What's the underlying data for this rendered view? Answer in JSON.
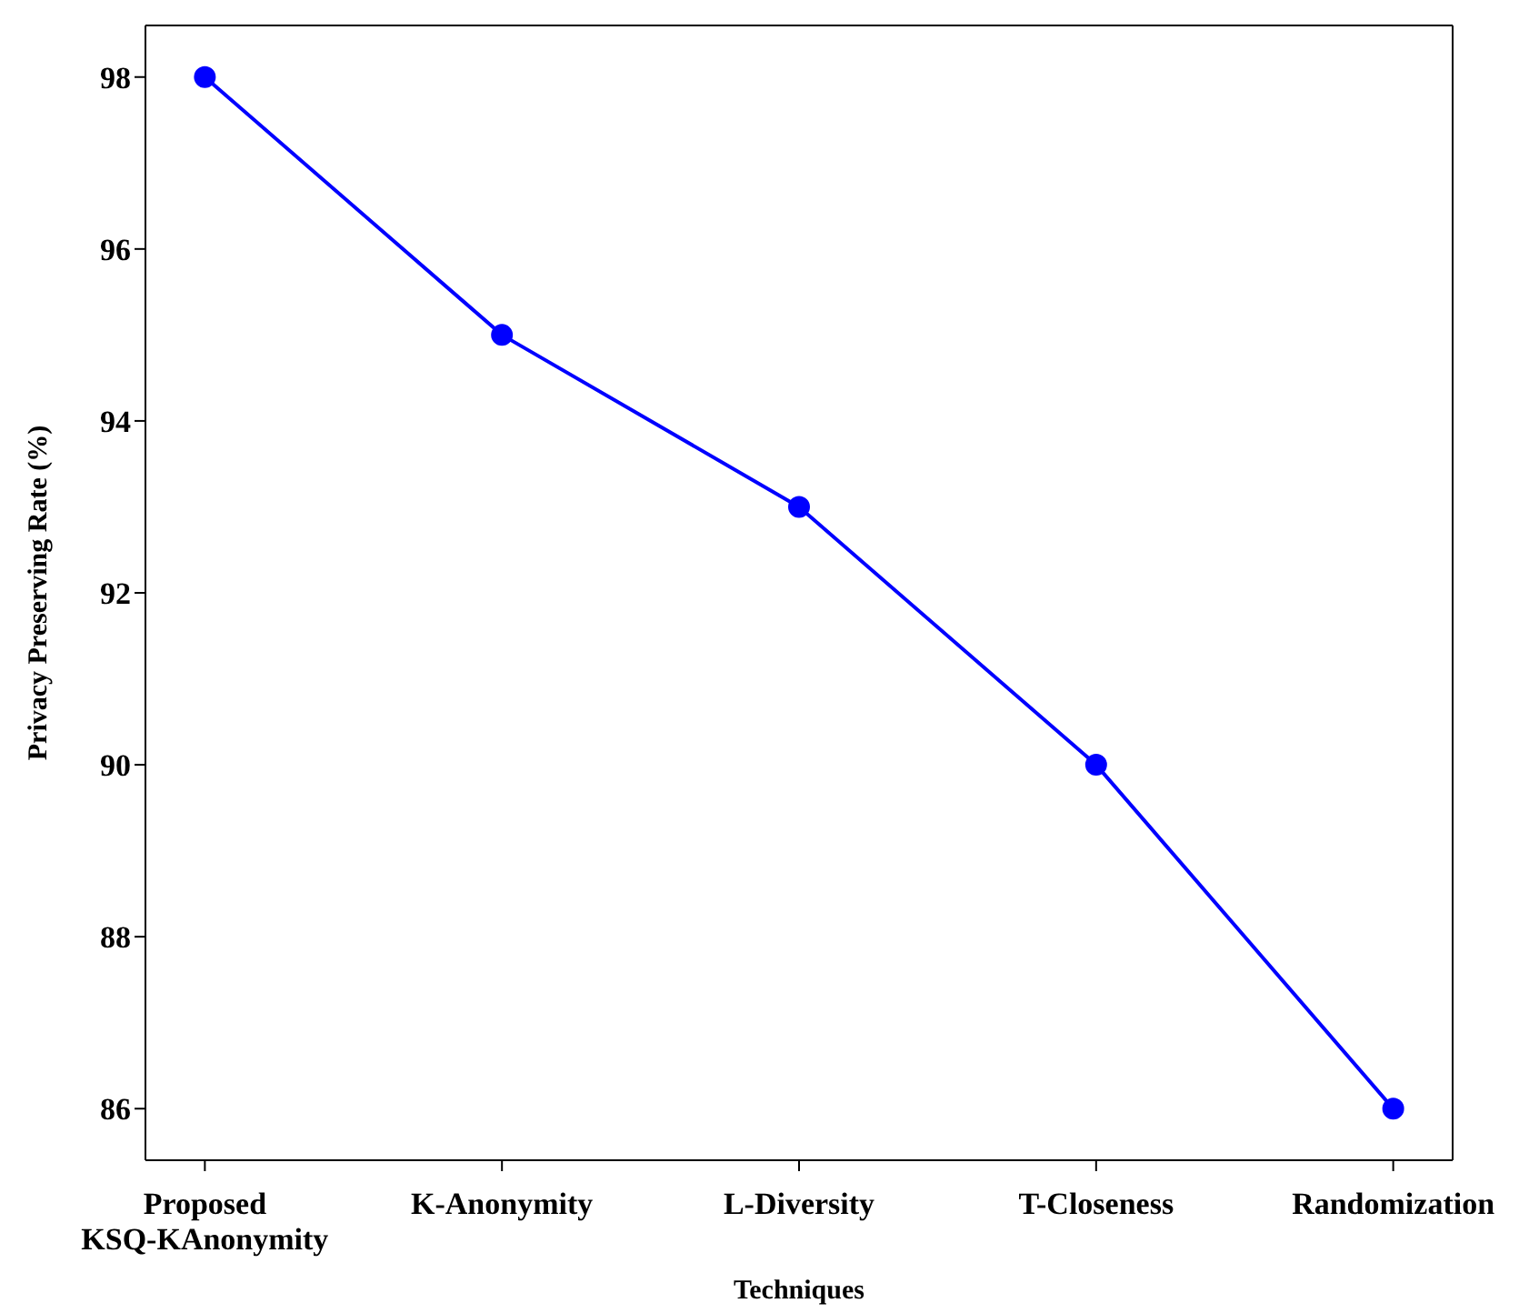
{
  "chart_data": {
    "type": "line",
    "xlabel": "Techniques",
    "ylabel": "Privacy Preserving Rate (%)",
    "categories": [
      "Proposed\nKSQ-KAnonymity",
      "K-Anonymity",
      "L-Diversity",
      "T-Closeness",
      "Randomization"
    ],
    "series": [
      {
        "color": "#0000ff",
        "values": [
          98,
          95,
          93,
          90,
          86
        ]
      }
    ],
    "ylim": [
      85.4,
      98.6
    ],
    "yticks": [
      86,
      88,
      90,
      92,
      94,
      96,
      98
    ],
    "marker": "circle",
    "line_style": "solid",
    "grid": false,
    "legend": false
  }
}
